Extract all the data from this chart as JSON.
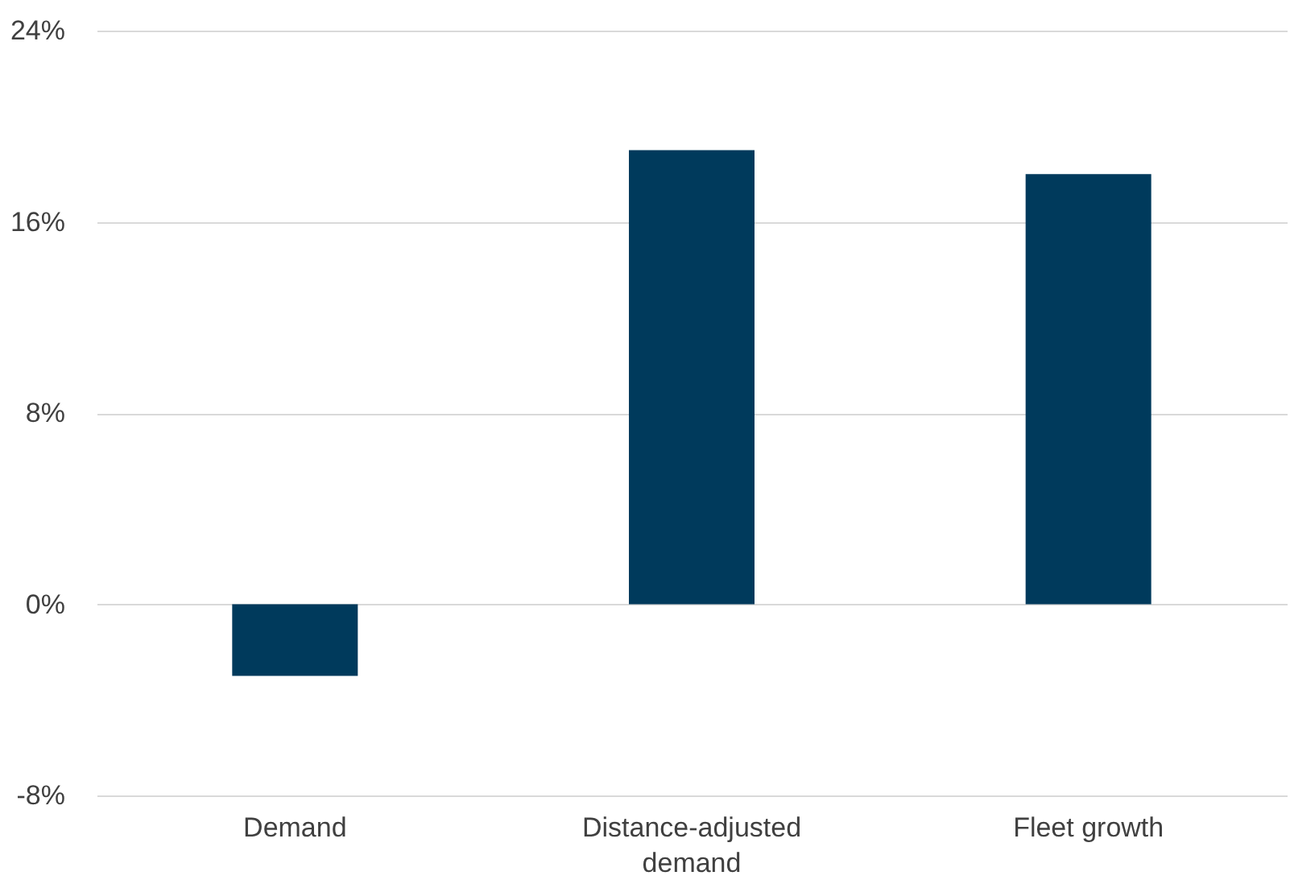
{
  "chart_data": {
    "type": "bar",
    "categories": [
      "Demand",
      "Distance-adjusted demand",
      "Fleet growth"
    ],
    "values": [
      -3,
      19,
      18
    ],
    "color": "#003a5c",
    "ylim": [
      -8,
      24
    ],
    "yticks": [
      {
        "value": -8,
        "label": "-8%"
      },
      {
        "value": 0,
        "label": "0%"
      },
      {
        "value": 8,
        "label": "8%"
      },
      {
        "value": 16,
        "label": "16%"
      },
      {
        "value": 24,
        "label": "24%"
      }
    ],
    "grid": "y"
  }
}
